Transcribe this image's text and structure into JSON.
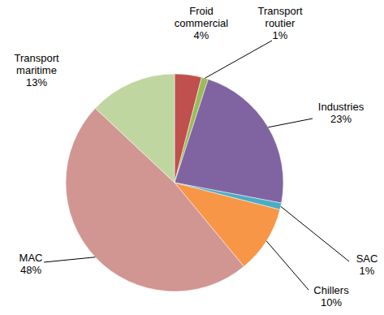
{
  "chart_data": {
    "type": "pie",
    "categories": [
      "Froid commercial",
      "Transport routier",
      "Industries",
      "SAC",
      "Chillers",
      "MAC",
      "Transport maritime"
    ],
    "values": [
      4,
      1,
      23,
      1,
      10,
      48,
      13
    ],
    "value_labels": [
      "4%",
      "1%",
      "23%",
      "1%",
      "10%",
      "48%",
      "13%"
    ],
    "colors": [
      "#c0504d",
      "#9bbb59",
      "#8064a2",
      "#4bacc6",
      "#f79646",
      "#d19592",
      "#c0d6a0"
    ],
    "data_labels": true,
    "legend": false
  }
}
